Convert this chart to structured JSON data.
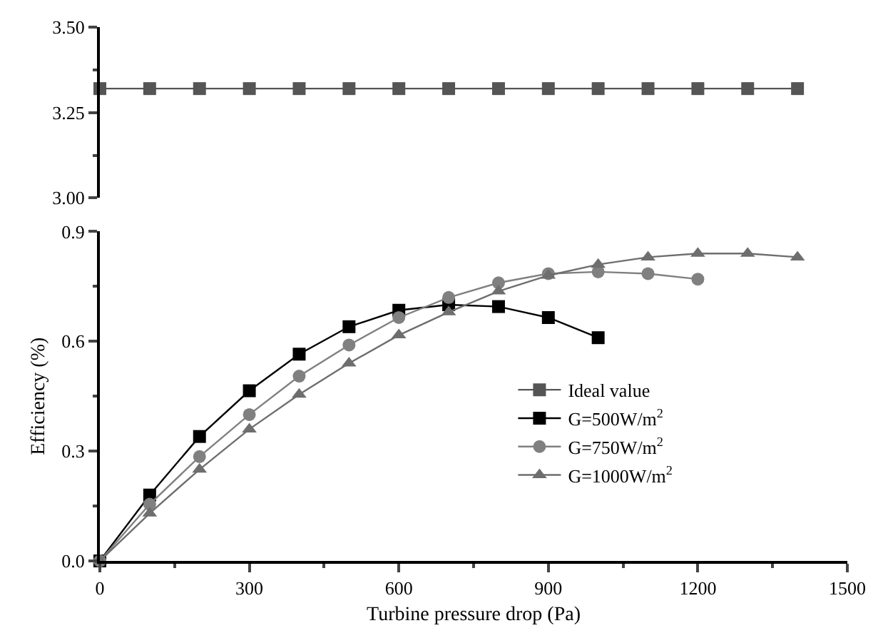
{
  "chart_data": [
    {
      "type": "line",
      "x": [
        0,
        100,
        200,
        300,
        400,
        500,
        600,
        700,
        800,
        900,
        1000,
        1100,
        1200,
        1300,
        1400
      ],
      "ylim": [
        3.0,
        3.5
      ],
      "yticks": [
        {
          "value": 3.0,
          "label": "3.00"
        },
        3.25,
        {
          "value": 3.5,
          "label": "3.50"
        }
      ],
      "tick_labels": "y",
      "series": [
        {
          "name": "Ideal value",
          "color": "#555555",
          "marker": "square",
          "values": [
            3.32,
            3.32,
            3.32,
            3.32,
            3.32,
            3.32,
            3.32,
            3.32,
            3.32,
            3.32,
            3.32,
            3.32,
            3.32,
            3.32,
            3.32
          ]
        }
      ]
    },
    {
      "type": "line",
      "xlabel": "Turbine pressure drop (Pa)",
      "ylabel": "Efficiency (%)",
      "xlim": [
        0,
        1500
      ],
      "xticks": [
        0,
        300,
        600,
        900,
        1200,
        1500
      ],
      "ylim": [
        0,
        0.9
      ],
      "yticks": [
        {
          "value": 0,
          "label": "0.0"
        },
        0.3,
        0.6,
        0.9
      ],
      "legend": "bottom right",
      "series": [
        {
          "name": "G=500W/m$^{2}$",
          "color": "#000000",
          "marker": "square",
          "x": [
            0,
            100,
            200,
            300,
            400,
            500,
            600,
            700,
            800,
            900,
            1000
          ],
          "values": [
            0,
            0.18,
            0.34,
            0.465,
            0.565,
            0.64,
            0.685,
            0.7,
            0.695,
            0.665,
            0.61
          ]
        },
        {
          "name": "G=750W/m$^{2}$",
          "color": "#808080",
          "marker": "circle",
          "x": [
            0,
            100,
            200,
            300,
            400,
            500,
            600,
            700,
            800,
            900,
            1000,
            1100,
            1200
          ],
          "values": [
            0,
            0.155,
            0.285,
            0.4,
            0.505,
            0.59,
            0.665,
            0.72,
            0.76,
            0.785,
            0.79,
            0.785,
            0.77
          ]
        },
        {
          "name": "G=1000W/m$^{2}$",
          "color": "#6e6e6e",
          "marker": "triangle",
          "x": [
            0,
            100,
            200,
            300,
            400,
            500,
            600,
            700,
            800,
            900,
            1000,
            1100,
            1200,
            1300,
            1400
          ],
          "values": [
            0,
            0.13,
            0.25,
            0.36,
            0.455,
            0.54,
            0.617,
            0.68,
            0.737,
            0.78,
            0.81,
            0.83,
            0.84,
            0.84,
            0.83
          ]
        }
      ]
    }
  ]
}
